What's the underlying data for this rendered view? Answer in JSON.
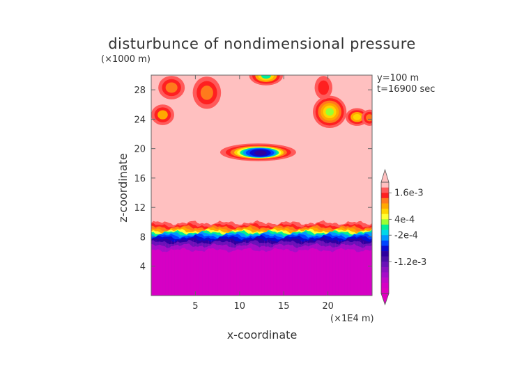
{
  "chart_data": {
    "type": "heatmap",
    "title": "disturbunce of nondimensional pressure",
    "ylabel": "z-coordinate",
    "xlabel": "x-coordinate",
    "y_unit": "(×1000 m)",
    "x_unit": "(×1E4 m)",
    "annotations": [
      "y=100 m",
      "t=16900 sec"
    ],
    "xlim": [
      0,
      25
    ],
    "ylim": [
      0,
      30
    ],
    "x_ticks": [
      5,
      10,
      15,
      20
    ],
    "x_tick_labels": [
      "5",
      "10",
      "15",
      "20"
    ],
    "y_ticks": [
      4,
      8,
      12,
      16,
      20,
      24,
      28
    ],
    "y_tick_labels": [
      "4",
      "8",
      "12",
      "16",
      "20",
      "24",
      "28"
    ],
    "grid": false,
    "colorbar": {
      "placement": "right",
      "labels": [
        {
          "value": 0.0016,
          "text": "1.6e-3"
        },
        {
          "value": 0.0004,
          "text": "4e-4"
        },
        {
          "value": -0.0002,
          "text": "-2e-4"
        },
        {
          "value": -0.0012,
          "text": "-1.2e-3"
        }
      ],
      "levels": [
        {
          "color": "#ffc0c0"
        },
        {
          "color": "#ff5a5a"
        },
        {
          "color": "#ff2020"
        },
        {
          "color": "#ff7a1c"
        },
        {
          "color": "#ffa800"
        },
        {
          "color": "#ffd500"
        },
        {
          "color": "#ffff33"
        },
        {
          "color": "#99ff33"
        },
        {
          "color": "#00ee99"
        },
        {
          "color": "#00d8e8"
        },
        {
          "color": "#0099ff"
        },
        {
          "color": "#0044ff"
        },
        {
          "color": "#0a0ad0"
        },
        {
          "color": "#2e00a0"
        },
        {
          "color": "#4a0ea8"
        },
        {
          "color": "#6a12b8"
        },
        {
          "color": "#8a10c0"
        },
        {
          "color": "#a60cc8"
        },
        {
          "color": "#c008c8"
        },
        {
          "color": "#d600c4"
        },
        {
          "color": "#e000c0"
        }
      ]
    },
    "regions": {
      "background_value": 0.0016,
      "boundary_layer_top_z": 9.9,
      "low_layer_value": -0.0015,
      "features": [
        {
          "label": "negative anomaly",
          "center": [
            12.5,
            19.5
          ],
          "min_value": -0.0012
        },
        {
          "label": "positive anomaly",
          "center": [
            20.0,
            25.0
          ],
          "min_value": 0.0004
        }
      ]
    }
  }
}
